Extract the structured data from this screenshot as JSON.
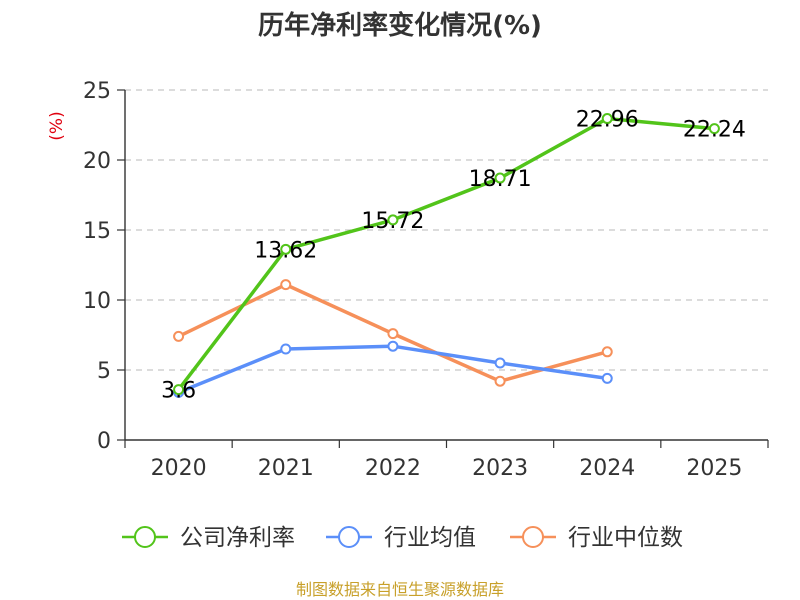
{
  "chart_data": {
    "type": "line",
    "title": "历年净利率变化情况(%)",
    "ylabel": "(%)",
    "categories": [
      "2020",
      "2021",
      "2022",
      "2023",
      "2024",
      "2025"
    ],
    "ylim": [
      0,
      25
    ],
    "yticks": [
      0,
      5,
      10,
      15,
      20,
      25
    ],
    "grid": true,
    "legend_position": "bottom",
    "series": [
      {
        "name": "公司净利率",
        "color": "#52c41a",
        "values": [
          3.6,
          13.62,
          15.72,
          18.71,
          22.96,
          22.24
        ],
        "labels": [
          "3.6",
          "13.62",
          "15.72",
          "18.71",
          "22.96",
          "22.24"
        ]
      },
      {
        "name": "行业均值",
        "color": "#5b8ff9",
        "values": [
          3.4,
          6.5,
          6.7,
          5.5,
          4.4,
          null
        ]
      },
      {
        "name": "行业中位数",
        "color": "#f6905a",
        "values": [
          7.4,
          11.1,
          7.6,
          4.2,
          6.3,
          null
        ]
      }
    ],
    "source": "制图数据来自恒生聚源数据库"
  }
}
